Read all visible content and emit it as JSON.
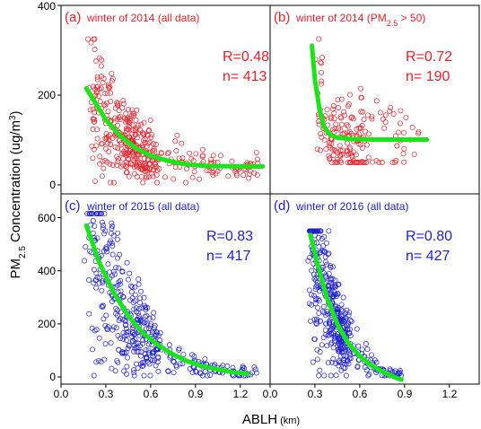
{
  "chart_data": [
    {
      "type": "scatter",
      "panel_label": "(a)",
      "title_pre": "winter of 2014 (all data)",
      "title_sub": "",
      "title_post": "",
      "color": "#e8212b",
      "fit_color": "#19e619",
      "R": "R=0.48",
      "n": "n= 413",
      "n_points": 413,
      "xlim": [
        0,
        1.4
      ],
      "ylim": [
        0,
        400
      ],
      "fit": [
        [
          0.17,
          215
        ],
        [
          0.3,
          145
        ],
        [
          0.4,
          108
        ],
        [
          0.5,
          82
        ],
        [
          0.6,
          65
        ],
        [
          0.7,
          55
        ],
        [
          0.8,
          48
        ],
        [
          0.9,
          44
        ],
        [
          1.0,
          42
        ],
        [
          1.2,
          41
        ],
        [
          1.35,
          41
        ]
      ],
      "scatter_spec": {
        "x_min": 0.18,
        "x_max": 1.32,
        "x_mode": 0.45,
        "y_min": 5,
        "y_max": 325,
        "y_mode": 60,
        "seed": 11
      }
    },
    {
      "type": "scatter",
      "panel_label": "(b)",
      "title_pre": "winter of 2014 (PM",
      "title_sub": "2.5",
      "title_post": " > 50)",
      "color": "#e8212b",
      "fit_color": "#19e619",
      "R": "R=0.72",
      "n": "n= 190",
      "n_points": 190,
      "xlim": [
        0,
        1.4
      ],
      "ylim": [
        0,
        400
      ],
      "fit": [
        [
          0.28,
          310
        ],
        [
          0.3,
          235
        ],
        [
          0.33,
          170
        ],
        [
          0.36,
          130
        ],
        [
          0.4,
          112
        ],
        [
          0.45,
          105
        ],
        [
          0.55,
          102
        ],
        [
          0.7,
          101
        ],
        [
          0.9,
          101
        ],
        [
          1.05,
          101
        ]
      ],
      "scatter_spec": {
        "x_min": 0.3,
        "x_max": 1.0,
        "x_mode": 0.5,
        "y_min": 50,
        "y_max": 325,
        "y_mode": 100,
        "seed": 23
      }
    },
    {
      "type": "scatter",
      "panel_label": "(c)",
      "title_pre": "winter of 2015 (all data)",
      "title_sub": "",
      "title_post": "",
      "color": "#1f1fd1",
      "fit_color": "#19e619",
      "R": "R=0.83",
      "n": "n= 417",
      "n_points": 417,
      "xlim": [
        0,
        1.4
      ],
      "ylim": [
        0,
        700
      ],
      "fit": [
        [
          0.17,
          570
        ],
        [
          0.25,
          440
        ],
        [
          0.35,
          320
        ],
        [
          0.45,
          230
        ],
        [
          0.55,
          165
        ],
        [
          0.65,
          120
        ],
        [
          0.75,
          85
        ],
        [
          0.85,
          58
        ],
        [
          0.95,
          40
        ],
        [
          1.05,
          28
        ],
        [
          1.15,
          18
        ],
        [
          1.25,
          12
        ]
      ],
      "scatter_spec": {
        "x_min": 0.15,
        "x_max": 1.32,
        "x_mode": 0.45,
        "y_min": 5,
        "y_max": 615,
        "y_mode": 120,
        "seed": 37
      }
    },
    {
      "type": "scatter",
      "panel_label": "(d)",
      "title_pre": "winter of 2016 (all data)",
      "title_sub": "",
      "title_post": "",
      "color": "#1f1fd1",
      "fit_color": "#19e619",
      "R": "R=0.80",
      "n": "n= 427",
      "n_points": 427,
      "xlim": [
        0,
        1.4
      ],
      "ylim": [
        0,
        700
      ],
      "fit": [
        [
          0.27,
          535
        ],
        [
          0.32,
          420
        ],
        [
          0.38,
          300
        ],
        [
          0.45,
          200
        ],
        [
          0.52,
          130
        ],
        [
          0.6,
          78
        ],
        [
          0.68,
          42
        ],
        [
          0.76,
          18
        ],
        [
          0.85,
          -5
        ],
        [
          0.88,
          -10
        ]
      ],
      "scatter_spec": {
        "x_min": 0.25,
        "x_max": 0.88,
        "x_mode": 0.42,
        "y_min": 5,
        "y_max": 550,
        "y_mode": 100,
        "seed": 53
      }
    }
  ],
  "axes": {
    "xlabel": "ABLH",
    "xlabel_unit": " (km)",
    "ylabel_pre": "PM",
    "ylabel_sub": "2.5",
    "ylabel_mid": " Concentration (ug/m",
    "ylabel_sup": "3",
    "ylabel_post": ")",
    "x_ticks": [
      "0.0",
      "0.3",
      "0.6",
      "0.9",
      "1.2",
      "0.0",
      "0.3",
      "0.6",
      "0.9",
      "1.2"
    ],
    "x_tick_values": [
      0,
      0.3,
      0.6,
      0.9,
      1.2
    ],
    "y_ticks_top": [
      "0",
      "200",
      "400"
    ],
    "y_ticks_top_values": [
      0,
      200,
      400
    ],
    "y_ticks_bottom": [
      "0",
      "200",
      "400",
      "600"
    ],
    "y_ticks_bottom_values": [
      0,
      200,
      400,
      600
    ]
  }
}
